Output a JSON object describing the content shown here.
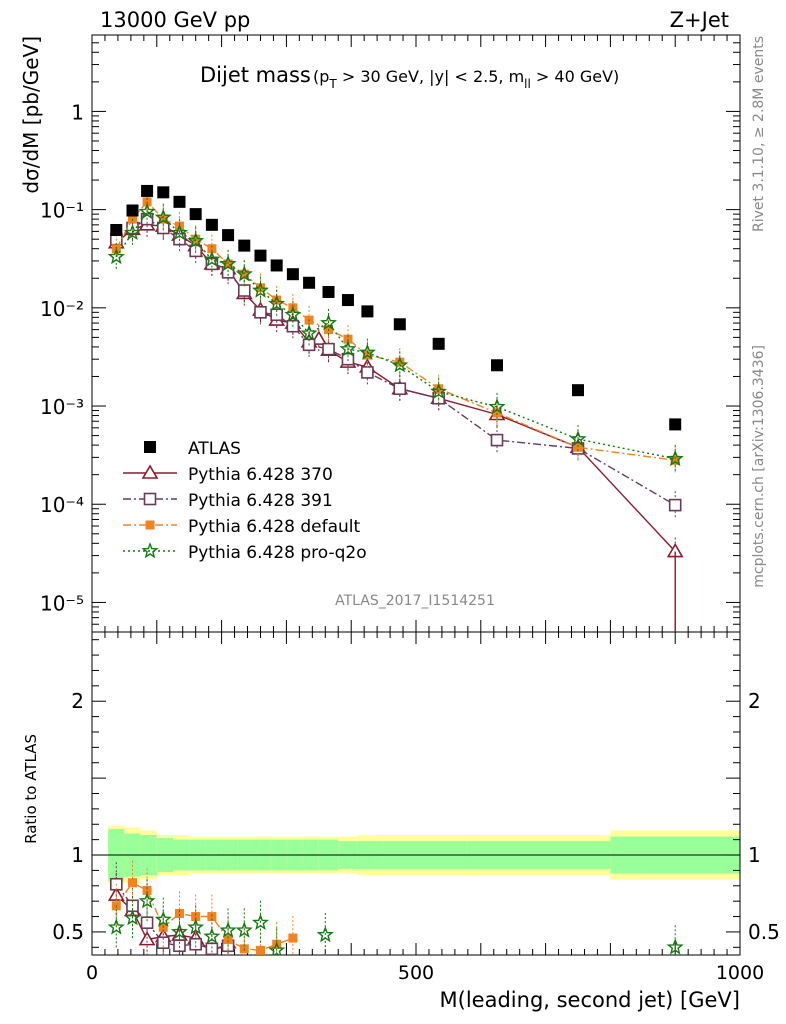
{
  "header": {
    "left": "13000 GeV pp",
    "right": "Z+Jet"
  },
  "side_labels": {
    "rivet": "Rivet 3.1.10, ≥ 2.8M events",
    "mcplots": "mcplots.cern.ch [arXiv:1306.3436]"
  },
  "chart_data": [
    {
      "type": "scatter",
      "title": "Dijet mass",
      "title_cuts": "(p_T > 30 GeV, |y| < 2.5, m_ll > 40 GeV)",
      "ylabel": "dσ/dM [pb/GeV]",
      "xlabel": "M(leading, second jet) [GeV]",
      "analysis_label": "ATLAS_2017_I1514251",
      "xlim": [
        0,
        1000
      ],
      "ylim": [
        5e-06,
        6
      ],
      "yscale": "log",
      "yticks": [
        "10⁻⁵",
        "10⁻⁴",
        "10⁻³",
        "10⁻²",
        "10⁻¹",
        "1"
      ],
      "xticks": [
        "0",
        "500",
        "1000"
      ],
      "legend_position": "lower-left",
      "series": [
        {
          "name": "ATLAS",
          "color": "#000000",
          "marker": "square",
          "x": [
            37.5,
            62.5,
            85,
            110,
            135,
            160,
            185,
            210,
            235,
            260,
            285,
            310,
            335,
            365,
            395,
            425,
            475,
            535,
            625,
            750,
            900
          ],
          "y": [
            0.062,
            0.098,
            0.155,
            0.15,
            0.12,
            0.09,
            0.07,
            0.055,
            0.043,
            0.034,
            0.027,
            0.022,
            0.018,
            0.0145,
            0.012,
            0.0092,
            0.0068,
            0.0043,
            0.0026,
            0.00145,
            0.00065
          ]
        },
        {
          "name": "Pythia 6.428 370",
          "color": "#8b1a2c",
          "marker": "triangle-open",
          "line": "solid",
          "x": [
            37.5,
            62.5,
            85,
            110,
            135,
            160,
            185,
            210,
            235,
            260,
            285,
            310,
            335,
            350,
            365,
            395,
            425,
            475,
            535,
            625,
            750,
            900
          ],
          "y": [
            0.046,
            0.063,
            0.07,
            0.068,
            0.055,
            0.043,
            0.028,
            0.025,
            0.014,
            0.0095,
            0.0075,
            0.007,
            0.0045,
            0.0048,
            0.0037,
            0.0028,
            0.0025,
            0.0015,
            0.0012,
            0.00082,
            0.00038,
            3.3e-05
          ]
        },
        {
          "name": "Pythia 6.428 391",
          "color": "#6b3a55",
          "marker": "square-open",
          "line": "dashdot",
          "x": [
            37.5,
            62.5,
            85,
            110,
            135,
            160,
            185,
            210,
            235,
            260,
            285,
            310,
            335,
            365,
            395,
            425,
            475,
            535,
            625,
            750,
            900
          ],
          "y": [
            0.05,
            0.065,
            0.08,
            0.065,
            0.05,
            0.038,
            0.028,
            0.023,
            0.015,
            0.009,
            0.0085,
            0.0065,
            0.0042,
            0.0038,
            0.003,
            0.0022,
            0.0015,
            0.0012,
            0.00045,
            0.00037,
            9.8e-05
          ]
        },
        {
          "name": "Pythia 6.428 default",
          "color": "#f58220",
          "marker": "square-filled",
          "line": "dashdot",
          "x": [
            37.5,
            62.5,
            85,
            110,
            135,
            160,
            185,
            210,
            235,
            260,
            285,
            310,
            335,
            365,
            395,
            425,
            475,
            535,
            625,
            750,
            900
          ],
          "y": [
            0.04,
            0.08,
            0.12,
            0.08,
            0.068,
            0.05,
            0.04,
            0.028,
            0.022,
            0.016,
            0.012,
            0.01,
            0.0075,
            0.006,
            0.0048,
            0.0033,
            0.0028,
            0.0015,
            0.00085,
            0.00038,
            0.00028
          ]
        },
        {
          "name": "Pythia 6.428 pro-q2o",
          "color": "#117a11",
          "marker": "star",
          "line": "dotted",
          "x": [
            37.5,
            62.5,
            85,
            110,
            135,
            160,
            185,
            210,
            235,
            260,
            285,
            310,
            335,
            365,
            395,
            425,
            475,
            535,
            625,
            750,
            900
          ],
          "y": [
            0.033,
            0.058,
            0.095,
            0.083,
            0.058,
            0.048,
            0.031,
            0.028,
            0.022,
            0.015,
            0.011,
            0.0085,
            0.0055,
            0.007,
            0.0038,
            0.0035,
            0.0026,
            0.0014,
            0.00098,
            0.00046,
            0.00029
          ]
        }
      ]
    },
    {
      "type": "scatter",
      "ylabel": "Ratio to ATLAS",
      "xlim": [
        0,
        1000
      ],
      "ylim": [
        0.35,
        2.45
      ],
      "yticks": [
        "0.5",
        "1",
        "2"
      ],
      "band_edges": [
        25,
        50,
        75,
        100,
        125,
        150,
        175,
        200,
        225,
        250,
        275,
        300,
        325,
        350,
        380,
        410,
        450,
        500,
        580,
        800,
        1000
      ],
      "band_inner": [
        0.17,
        0.14,
        0.13,
        0.11,
        0.1,
        0.1,
        0.1,
        0.1,
        0.1,
        0.1,
        0.1,
        0.1,
        0.1,
        0.1,
        0.09,
        0.09,
        0.09,
        0.09,
        0.09,
        0.12
      ],
      "band_outer": [
        0.19,
        0.18,
        0.16,
        0.13,
        0.13,
        0.12,
        0.12,
        0.12,
        0.12,
        0.12,
        0.12,
        0.12,
        0.12,
        0.12,
        0.12,
        0.13,
        0.13,
        0.13,
        0.13,
        0.16
      ],
      "band_colors": {
        "inner": "#99ff99",
        "outer": "#ffff99"
      },
      "reference_line": 1,
      "series": [
        {
          "name": "Pythia 6.428 370",
          "color": "#8b1a2c",
          "marker": "triangle-open",
          "x": [
            37.5,
            62.5,
            85,
            110,
            135,
            160,
            185,
            210
          ],
          "y": [
            0.74,
            0.64,
            0.45,
            0.47,
            0.48,
            0.46,
            0.37,
            0.43
          ]
        },
        {
          "name": "Pythia 6.428 391",
          "color": "#6b3a55",
          "marker": "square-open",
          "x": [
            37.5,
            62.5,
            85,
            110,
            135,
            160,
            185,
            210
          ],
          "y": [
            0.81,
            0.67,
            0.56,
            0.43,
            0.41,
            0.42,
            0.39,
            0.41
          ]
        },
        {
          "name": "Pythia 6.428 default",
          "color": "#f58220",
          "marker": "square-filled",
          "x": [
            37.5,
            62.5,
            85,
            110,
            135,
            160,
            185,
            210,
            235,
            260,
            285,
            310
          ],
          "y": [
            0.67,
            0.82,
            0.77,
            0.53,
            0.62,
            0.6,
            0.6,
            0.45,
            0.39,
            0.38,
            0.42,
            0.46
          ]
        },
        {
          "name": "Pythia 6.428 pro-q2o",
          "color": "#117a11",
          "marker": "star",
          "x": [
            37.5,
            62.5,
            85,
            110,
            135,
            160,
            185,
            210,
            235,
            260,
            285,
            360,
            900
          ],
          "y": [
            0.53,
            0.59,
            0.7,
            0.58,
            0.5,
            0.53,
            0.47,
            0.51,
            0.51,
            0.56,
            0.38,
            0.48,
            0.4
          ]
        }
      ]
    }
  ]
}
